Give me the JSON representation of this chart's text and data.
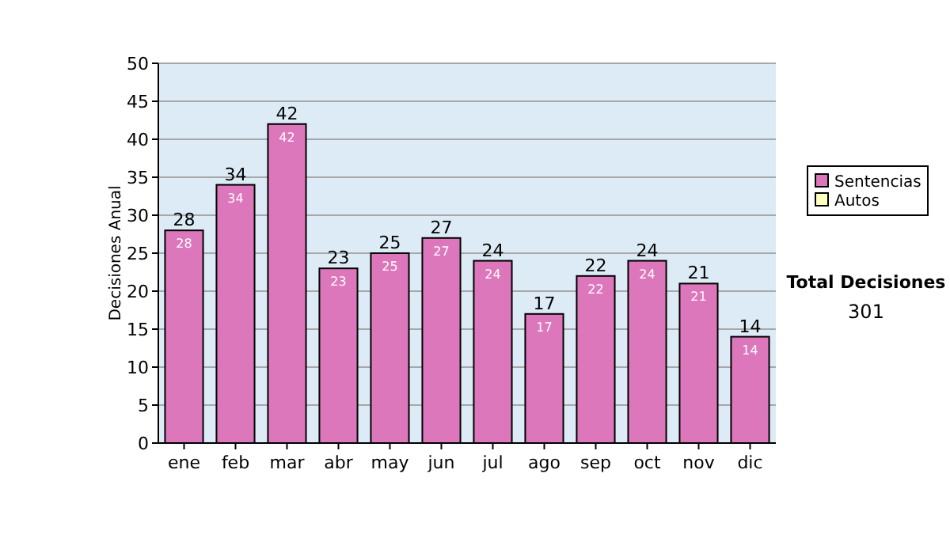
{
  "chart_data": {
    "type": "bar",
    "ylabel": "Decisiones Anual",
    "categories": [
      "ene",
      "feb",
      "mar",
      "abr",
      "may",
      "jun",
      "jul",
      "ago",
      "sep",
      "oct",
      "nov",
      "dic"
    ],
    "series": [
      {
        "name": "Sentencias",
        "color": "#dd77bb",
        "values": [
          28,
          34,
          42,
          23,
          25,
          27,
          24,
          17,
          22,
          24,
          21,
          14
        ],
        "value_labels": [
          "28",
          "34",
          "42",
          "23",
          "25",
          "27",
          "24",
          "17",
          "22",
          "24",
          "21",
          "14"
        ]
      },
      {
        "name": "Autos",
        "color": "#ffffc0",
        "values": [
          null,
          null,
          null,
          null,
          null,
          null,
          null,
          null,
          null,
          null,
          null,
          null
        ]
      }
    ],
    "ylim": [
      0,
      50
    ],
    "yticks": [
      0,
      5,
      10,
      15,
      20,
      25,
      30,
      35,
      40,
      45,
      50
    ],
    "grid": "y",
    "legend": "right",
    "annotations": [
      "Total Decisiones",
      "301",
      {
        "text": "28",
        "x": "ene",
        "y": 28
      },
      {
        "text": "34",
        "x": "feb",
        "y": 34
      },
      {
        "text": "42",
        "x": "mar",
        "y": 42
      },
      {
        "text": "23",
        "x": "abr",
        "y": 23
      },
      {
        "text": "25",
        "x": "may",
        "y": 25
      },
      {
        "text": "27",
        "x": "jun",
        "y": 27
      },
      {
        "text": "24",
        "x": "jul",
        "y": 24
      },
      {
        "text": "17",
        "x": "ago",
        "y": 17
      },
      {
        "text": "22",
        "x": "sep",
        "y": 22
      },
      {
        "text": "24",
        "x": "oct",
        "y": 24
      },
      {
        "text": "21",
        "x": "nov",
        "y": 21
      },
      {
        "text": "14",
        "x": "dic",
        "y": 14
      }
    ]
  }
}
